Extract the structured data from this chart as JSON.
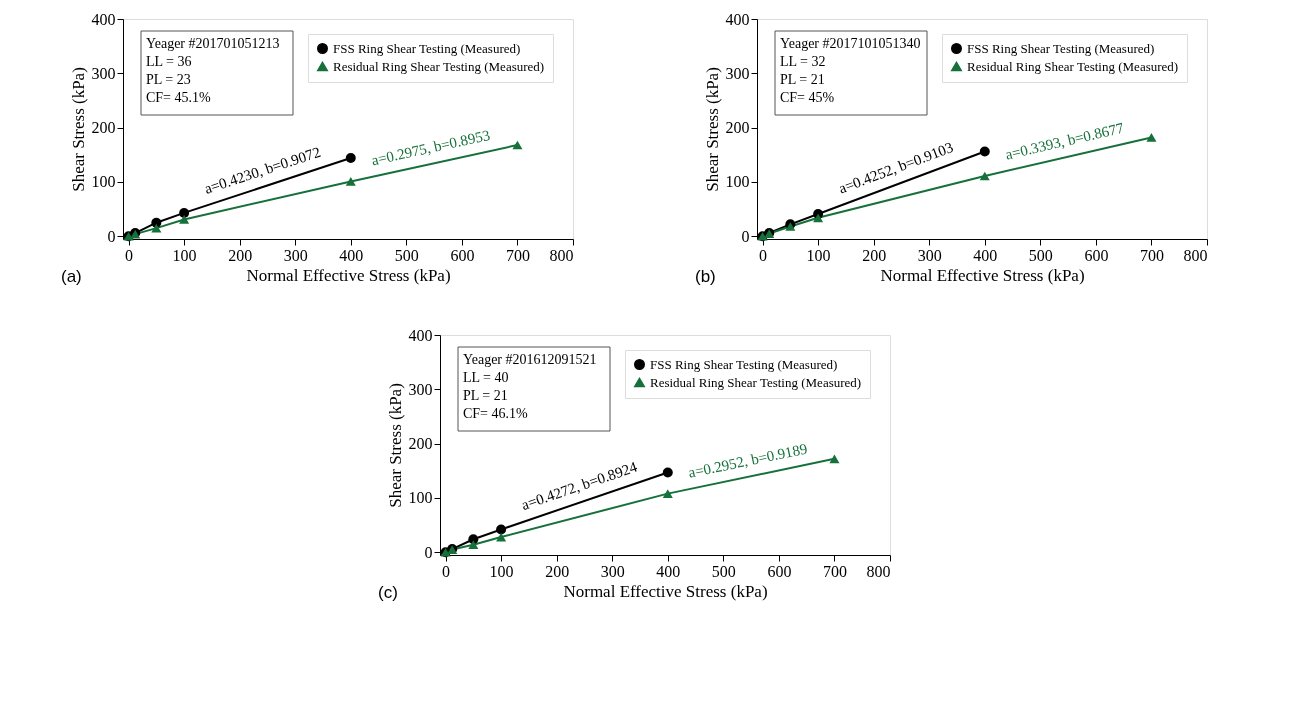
{
  "chart_data": [
    {
      "type": "line",
      "xlabel": "Normal Effective Stress (kPa)",
      "ylabel": "Shear Stress (kPa)",
      "xlim": [
        -10,
        800
      ],
      "ylim": [
        -5,
        400
      ],
      "xticks": [
        0,
        100,
        200,
        300,
        400,
        500,
        600,
        700,
        800
      ],
      "yticks": [
        0,
        100,
        200,
        300,
        400
      ],
      "grid": false,
      "legend": "top right",
      "line_style": "solid",
      "series": [
        {
          "name": "FSS Ring Shear Testing (Measured)",
          "color": "#000000",
          "marker": "circle",
          "x": [
            0,
            12,
            50,
            100,
            400
          ],
          "values": [
            0,
            6,
            25,
            43,
            144
          ]
        },
        {
          "name": "Residual Ring Shear Testing (Measured)",
          "color": "#16703a",
          "marker": "triangle",
          "x": [
            0,
            12,
            50,
            100,
            400,
            700
          ],
          "values": [
            0,
            4,
            15,
            31,
            101,
            168
          ]
        }
      ],
      "annotations": [
        "Yeager #201701051213",
        "LL = 36",
        "PL = 23",
        "CF= 45.1%",
        "a=0.4230, b=0.9072",
        "a=0.2975, b=0.8953",
        "(a)"
      ]
    },
    {
      "type": "line",
      "xlabel": "Normal Effective Stress (kPa)",
      "ylabel": "Shear Stress (kPa)",
      "xlim": [
        -10,
        800
      ],
      "ylim": [
        -5,
        400
      ],
      "xticks": [
        0,
        100,
        200,
        300,
        400,
        500,
        600,
        700,
        800
      ],
      "yticks": [
        0,
        100,
        200,
        300,
        400
      ],
      "grid": false,
      "legend": "top right",
      "line_style": "solid",
      "series": [
        {
          "name": "FSS Ring Shear Testing (Measured)",
          "color": "#000000",
          "marker": "circle",
          "x": [
            0,
            12,
            50,
            100,
            400
          ],
          "values": [
            0,
            6,
            22,
            41,
            156
          ]
        },
        {
          "name": "Residual Ring Shear Testing (Measured)",
          "color": "#16703a",
          "marker": "triangle",
          "x": [
            0,
            12,
            50,
            100,
            400,
            700
          ],
          "values": [
            0,
            5,
            18,
            34,
            111,
            182
          ]
        }
      ],
      "annotations": [
        "Yeager #2017101051340",
        "LL = 32",
        "PL = 21",
        "CF= 45%",
        "a=0.4252, b=0.9103",
        "a=0.3393, b=0.8677",
        "(b)"
      ]
    },
    {
      "type": "line",
      "xlabel": "Normal Effective Stress (kPa)",
      "ylabel": "Shear Stress (kPa)",
      "xlim": [
        -10,
        800
      ],
      "ylim": [
        -5,
        400
      ],
      "xticks": [
        0,
        100,
        200,
        300,
        400,
        500,
        600,
        700,
        800
      ],
      "yticks": [
        0,
        100,
        200,
        300,
        400
      ],
      "grid": false,
      "legend": "top right",
      "line_style": "solid",
      "series": [
        {
          "name": "FSS Ring Shear Testing (Measured)",
          "color": "#000000",
          "marker": "circle",
          "x": [
            0,
            12,
            50,
            100,
            400
          ],
          "values": [
            0,
            6,
            24,
            42,
            147
          ]
        },
        {
          "name": "Residual Ring Shear Testing (Measured)",
          "color": "#16703a",
          "marker": "triangle",
          "x": [
            0,
            12,
            50,
            100,
            400,
            700
          ],
          "values": [
            0,
            5,
            14,
            28,
            108,
            172
          ]
        }
      ],
      "annotations": [
        "Yeager #201612091521",
        "LL = 40",
        "PL = 21",
        "CF= 46.1%",
        "a=0.4272, b=0.8924",
        "a=0.2952, b=0.9189",
        "(c)"
      ]
    }
  ]
}
